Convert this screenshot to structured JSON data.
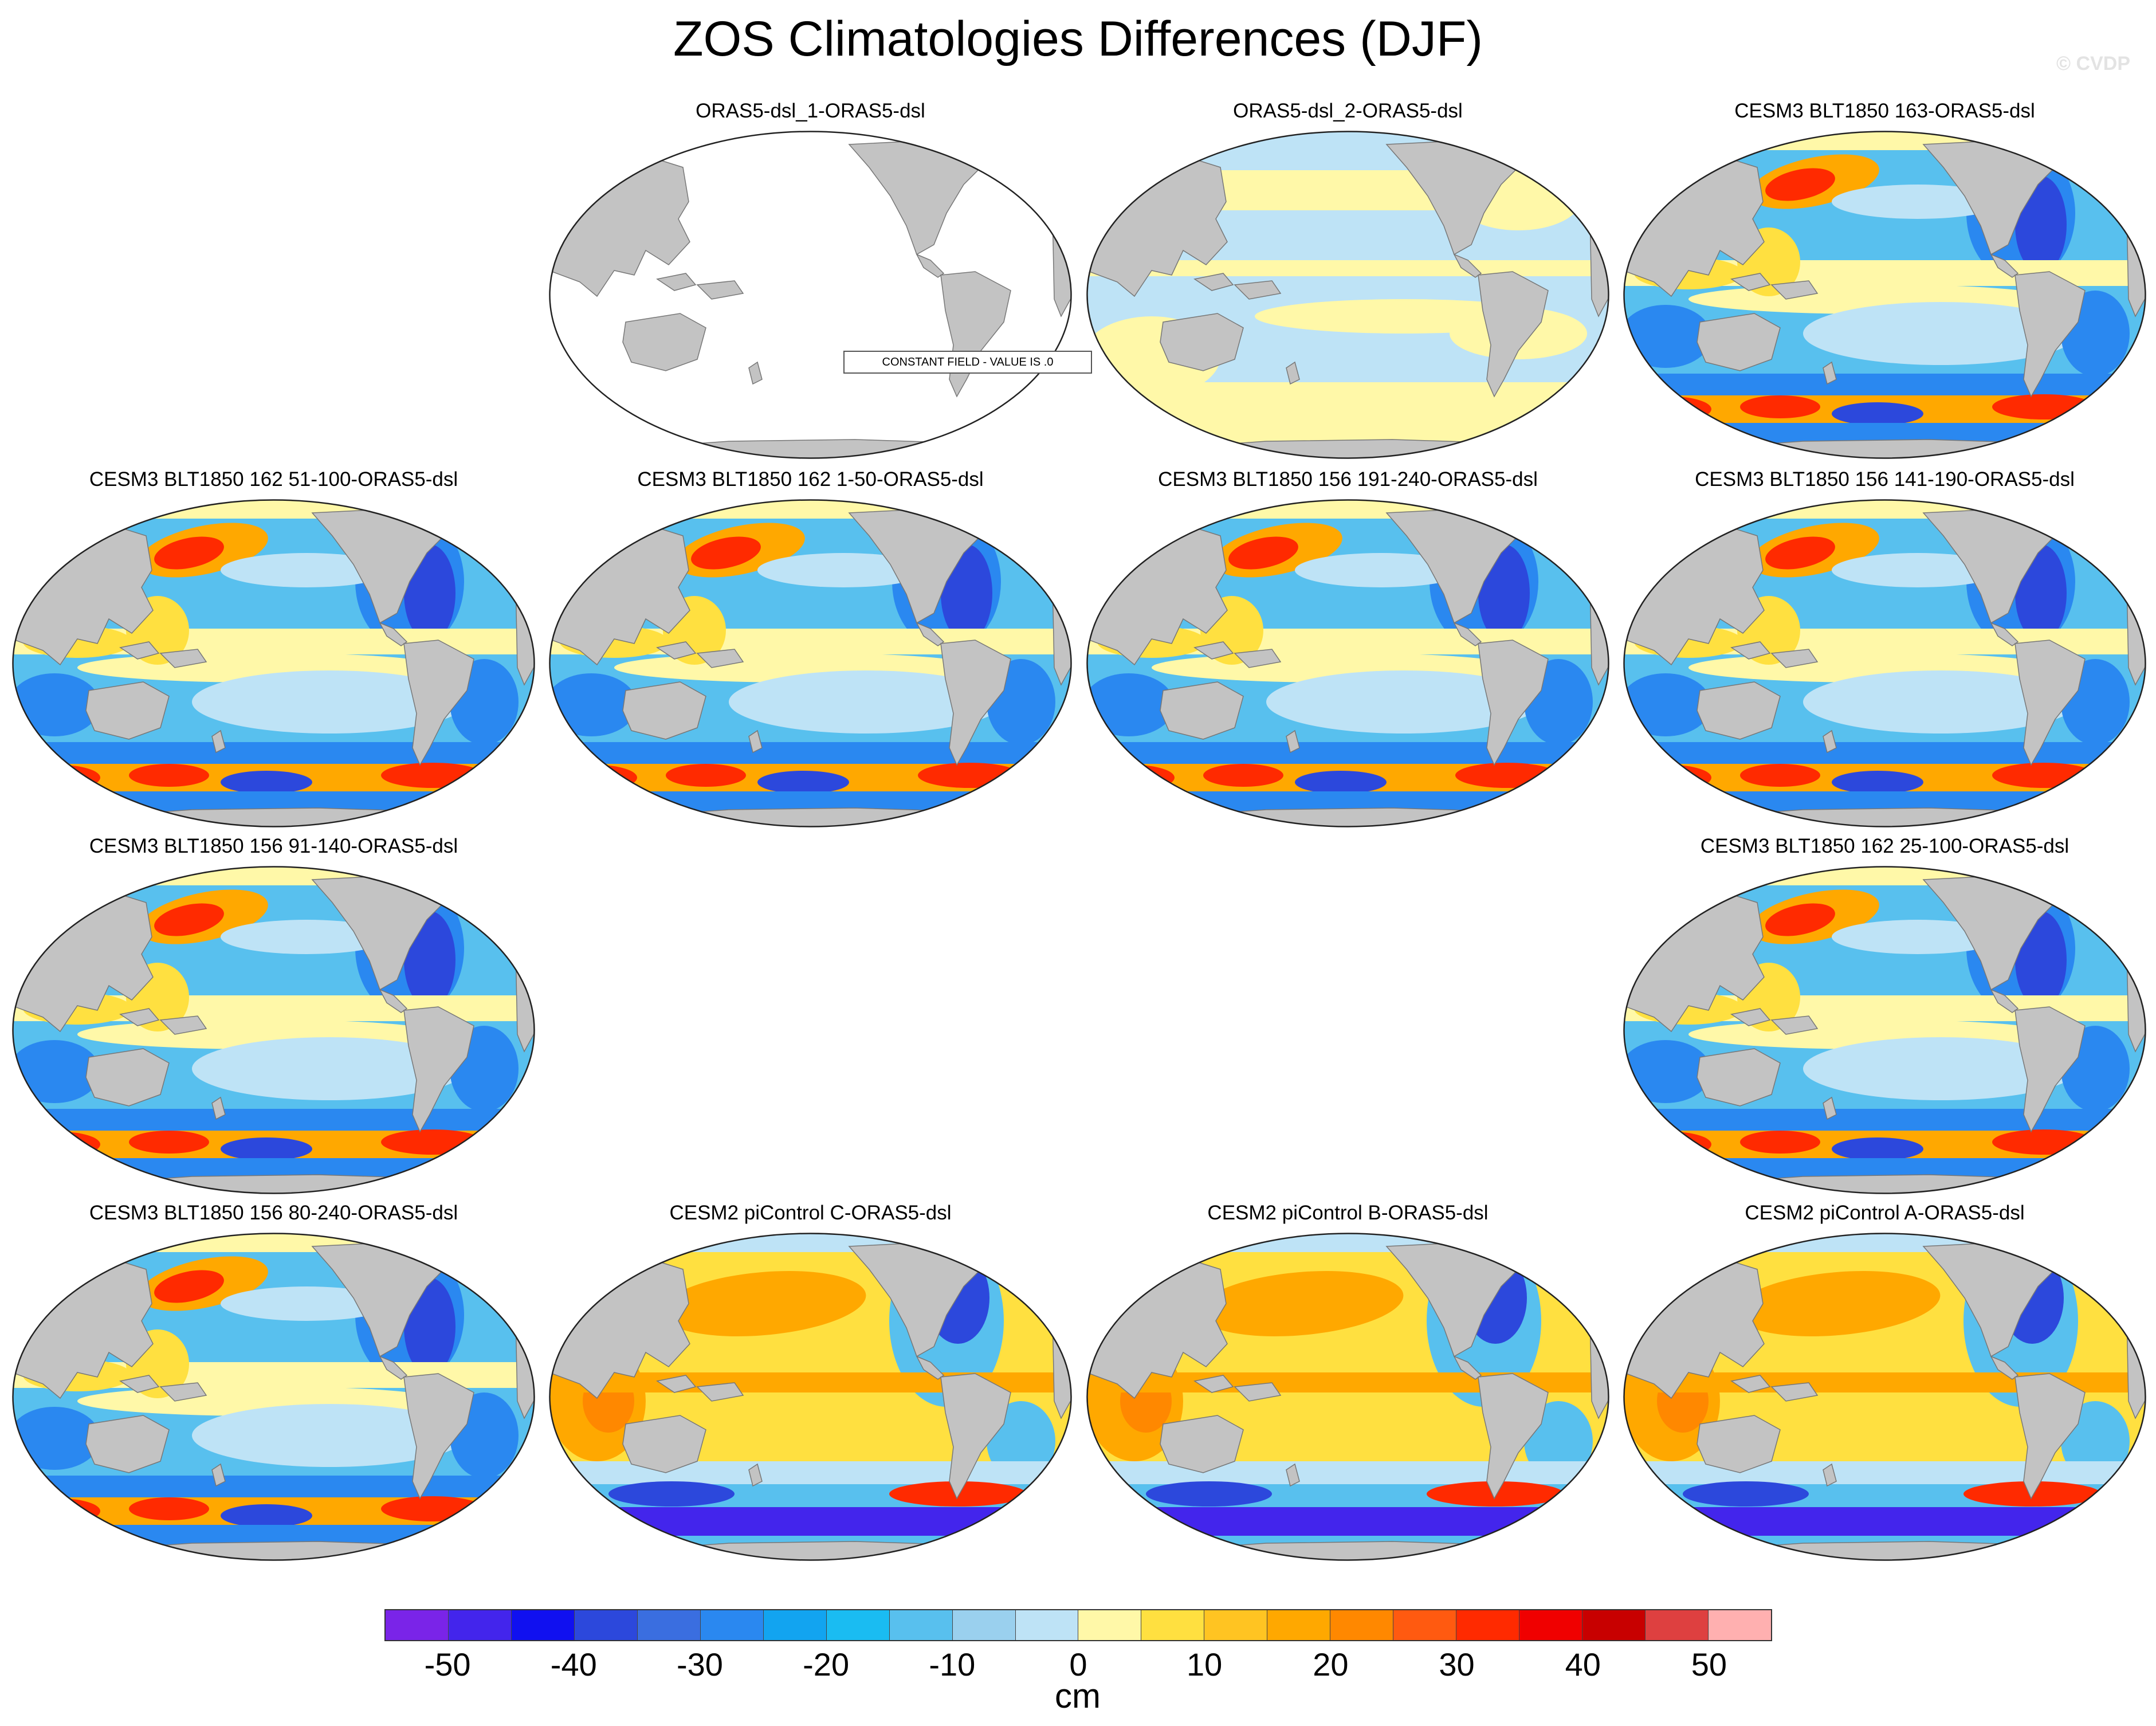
{
  "title": "ZOS Climatologies Differences (DJF)",
  "watermark": "© CVDP",
  "panels": [
    {
      "title": "ORAS5-dsl_1-ORAS5-dsl",
      "pattern": "constant",
      "note": "CONSTANT FIELD - VALUE IS .0"
    },
    {
      "title": "ORAS5-dsl_2-ORAS5-dsl",
      "pattern": "near-zero"
    },
    {
      "title": "CESM3 BLT1850 163-ORAS5-dsl",
      "pattern": "cesm3"
    },
    {
      "title": "CESM3 BLT1850 162 51-100-ORAS5-dsl",
      "pattern": "cesm3"
    },
    {
      "title": "CESM3 BLT1850 162 1-50-ORAS5-dsl",
      "pattern": "cesm3"
    },
    {
      "title": "CESM3 BLT1850 156 191-240-ORAS5-dsl",
      "pattern": "cesm3"
    },
    {
      "title": "CESM3 BLT1850 156 141-190-ORAS5-dsl",
      "pattern": "cesm3"
    },
    {
      "title": "CESM3 BLT1850 156 91-140-ORAS5-dsl",
      "pattern": "cesm3"
    },
    {
      "title": "CESM3 BLT1850 162 25-100-ORAS5-dsl",
      "pattern": "cesm3"
    },
    {
      "title": "CESM3 BLT1850 156 80-240-ORAS5-dsl",
      "pattern": "cesm3"
    },
    {
      "title": "CESM2 piControl C-ORAS5-dsl",
      "pattern": "cesm2"
    },
    {
      "title": "CESM2 piControl B-ORAS5-dsl",
      "pattern": "cesm2"
    },
    {
      "title": "CESM2 piControl A-ORAS5-dsl",
      "pattern": "cesm2"
    }
  ],
  "colorbar": {
    "unit": "cm",
    "tick_labels": [
      "-50",
      "-40",
      "-30",
      "-20",
      "-10",
      "0",
      "10",
      "20",
      "30",
      "40",
      "50"
    ],
    "colors": [
      "#7a24e8",
      "#4325ec",
      "#1010f0",
      "#2c48dc",
      "#3a6ee0",
      "#2a88f0",
      "#12a4f0",
      "#1abcf2",
      "#58c0ee",
      "#9ad0ee",
      "#bee3f6",
      "#fff8a8",
      "#ffe040",
      "#ffc422",
      "#ffa800",
      "#ff8800",
      "#ff5a10",
      "#ff2a00",
      "#f00000",
      "#c80000",
      "#de4040",
      "#ffb0b0"
    ]
  },
  "map_colors": {
    "land": "#c3c3c3",
    "ocean_zero": "#ffffff",
    "pale_blue": "#bee3f6",
    "light_blue": "#58c0ee",
    "mid_blue": "#2a88f0",
    "dark_blue": "#2c48dc",
    "purple": "#4325ec",
    "pale_yellow": "#fff8a8",
    "yellow": "#ffe040",
    "orange": "#ffa800",
    "dark_orange": "#ff8800",
    "red": "#ff2a00",
    "dark_red": "#c80000"
  }
}
